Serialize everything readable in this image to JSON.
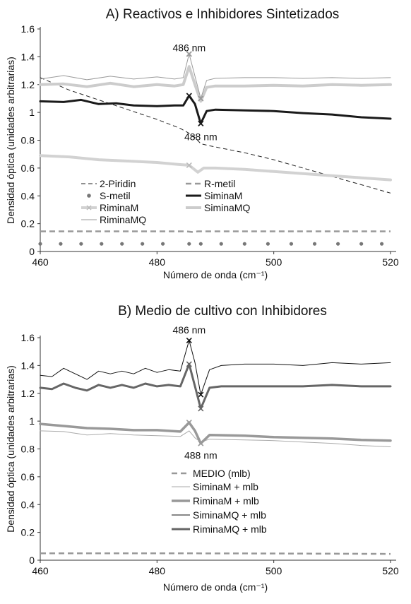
{
  "chart_data": [
    {
      "type": "line",
      "title": "A) Reactivos e Inhibidores Sintetizados",
      "xlabel": "Número de onda (cm⁻¹)",
      "ylabel": "Densidad óptica  (unidades arbitrarias)",
      "xlim": [
        460,
        520
      ],
      "ylim": [
        0,
        1.6
      ],
      "xticks": [
        460,
        480,
        500,
        520
      ],
      "yticks": [
        0,
        0.2,
        0.4,
        0.6,
        0.8,
        1,
        1.2,
        1.4,
        1.6
      ],
      "ytick_labels": [
        "0",
        "0.2",
        "0.4",
        "0.6",
        "0.8",
        "1",
        "1.2",
        "1.4",
        "1.6"
      ],
      "grid": false,
      "legend_position": "center",
      "annotations": [
        {
          "text": "486 nm",
          "x": 485.5,
          "y": 1.44
        },
        {
          "text": "488 nm",
          "x": 487.5,
          "y": 0.85
        }
      ],
      "series": [
        {
          "name": "2-Piridin",
          "color": "#222222",
          "style": "dashed",
          "width": 1,
          "x": [
            460,
            465,
            470,
            475,
            480,
            484,
            485.5,
            486.5,
            487.5,
            489,
            495,
            500,
            505,
            510,
            515,
            520
          ],
          "y": [
            1.25,
            1.16,
            1.09,
            1.02,
            0.95,
            0.885,
            0.85,
            0.82,
            0.775,
            0.76,
            0.71,
            0.66,
            0.6,
            0.54,
            0.48,
            0.42
          ]
        },
        {
          "name": "R-metil",
          "color": "#999999",
          "style": "dashed",
          "width": 2.5,
          "x": [
            460,
            485,
            486,
            487,
            488,
            500,
            520
          ],
          "y": [
            0.145,
            0.145,
            0.14,
            0.145,
            0.145,
            0.145,
            0.145
          ]
        },
        {
          "name": "S-metil",
          "color": "#777777",
          "style": "dots",
          "width": 1,
          "x": [
            460,
            463.5,
            467,
            470.5,
            474,
            477.5,
            481,
            485.5,
            487.5,
            491,
            495,
            499,
            503,
            507,
            511,
            515,
            518.5
          ],
          "y": [
            0.055,
            0.055,
            0.055,
            0.055,
            0.055,
            0.055,
            0.055,
            0.055,
            0.055,
            0.055,
            0.055,
            0.055,
            0.055,
            0.055,
            0.055,
            0.055,
            0.055
          ]
        },
        {
          "name": "SiminaM",
          "color": "#1a1a1a",
          "style": "solid",
          "width": 3,
          "x": [
            460,
            464,
            467,
            470,
            473,
            476,
            480,
            483,
            484.5,
            485.5,
            486.5,
            487.5,
            488.5,
            490,
            495,
            500,
            505,
            510,
            515,
            520
          ],
          "y": [
            1.08,
            1.075,
            1.09,
            1.06,
            1.065,
            1.05,
            1.045,
            1.05,
            1.05,
            1.12,
            1.06,
            0.92,
            1.01,
            1.02,
            1.015,
            1.01,
            0.995,
            0.985,
            0.965,
            0.955
          ]
        },
        {
          "name": "RiminaM",
          "color": "#d2d2d2",
          "style": "solid",
          "width": 4,
          "marker": "x",
          "x": [
            460,
            465,
            470,
            475,
            480,
            484,
            485.5,
            487,
            488,
            490,
            495,
            500,
            505,
            510,
            515,
            520
          ],
          "y": [
            0.69,
            0.68,
            0.66,
            0.65,
            0.64,
            0.625,
            0.62,
            0.57,
            0.6,
            0.6,
            0.59,
            0.575,
            0.56,
            0.545,
            0.53,
            0.515
          ]
        },
        {
          "name": "SiminaMQ",
          "color": "#cccccc",
          "style": "solid",
          "width": 4,
          "x": [
            460,
            464,
            468,
            472,
            476,
            480,
            483,
            484.5,
            485.5,
            486.5,
            487.5,
            488.5,
            490,
            495,
            500,
            505,
            510,
            515,
            520
          ],
          "y": [
            1.2,
            1.205,
            1.185,
            1.21,
            1.185,
            1.2,
            1.19,
            1.2,
            1.33,
            1.2,
            1.08,
            1.18,
            1.19,
            1.19,
            1.195,
            1.19,
            1.2,
            1.195,
            1.2
          ]
        },
        {
          "name": "RiminaMQ",
          "color": "#9a9a9a",
          "style": "solid",
          "width": 1,
          "x": [
            460,
            464,
            468,
            472,
            476,
            480,
            483,
            484.5,
            485.5,
            486.5,
            487.5,
            488.5,
            490,
            495,
            500,
            505,
            510,
            515,
            520
          ],
          "y": [
            1.24,
            1.265,
            1.235,
            1.26,
            1.24,
            1.255,
            1.24,
            1.25,
            1.42,
            1.26,
            1.1,
            1.23,
            1.245,
            1.25,
            1.25,
            1.245,
            1.25,
            1.245,
            1.25
          ]
        }
      ]
    },
    {
      "type": "line",
      "title": "B) Medio de cultivo con Inhibidores",
      "xlabel": "Número de onda (cm⁻¹)",
      "ylabel": "Densidad óptica (unidades arbitrarias)",
      "xlim": [
        460,
        520
      ],
      "ylim": [
        0,
        1.6
      ],
      "xticks": [
        460,
        480,
        500,
        520
      ],
      "yticks": [
        0,
        0.2,
        0.4,
        0.6,
        0.8,
        1,
        1.2,
        1.4,
        1.6
      ],
      "ytick_labels": [
        "0",
        "0.2",
        "0.4",
        "0.6",
        "0.8",
        "1",
        "1.2",
        "1.4",
        "1.6"
      ],
      "grid": false,
      "legend_position": "center-right",
      "annotations": [
        {
          "text": "486 nm",
          "x": 485.5,
          "y": 1.63
        },
        {
          "text": "488 nm",
          "x": 487.5,
          "y": 0.78
        }
      ],
      "series": [
        {
          "name": "MEDIO (mlb)",
          "color": "#999999",
          "style": "dashed",
          "width": 2.5,
          "x": [
            460,
            480,
            500,
            520
          ],
          "y": [
            0.05,
            0.05,
            0.048,
            0.045
          ]
        },
        {
          "name": "SiminaM + mlb",
          "color": "#aaaaaa",
          "style": "solid",
          "width": 1,
          "x": [
            460,
            464,
            468,
            472,
            476,
            480,
            484,
            485.5,
            486.5,
            487.5,
            489,
            495,
            500,
            505,
            510,
            515,
            520
          ],
          "y": [
            0.93,
            0.925,
            0.9,
            0.91,
            0.9,
            0.895,
            0.89,
            0.93,
            0.88,
            0.85,
            0.87,
            0.865,
            0.86,
            0.85,
            0.84,
            0.825,
            0.815
          ]
        },
        {
          "name": "RiminaM + mlb",
          "color": "#999999",
          "style": "solid",
          "width": 3.5,
          "marker": "x",
          "x": [
            460,
            464,
            468,
            472,
            476,
            480,
            484,
            485.5,
            486.5,
            487.5,
            489,
            495,
            500,
            505,
            510,
            515,
            520
          ],
          "y": [
            0.98,
            0.965,
            0.95,
            0.945,
            0.935,
            0.935,
            0.925,
            0.99,
            0.93,
            0.84,
            0.9,
            0.895,
            0.885,
            0.88,
            0.875,
            0.865,
            0.86
          ]
        },
        {
          "name": "SiminaMQ + mlb",
          "color": "#111111",
          "style": "solid",
          "width": 1,
          "marker": "x",
          "x": [
            460,
            462,
            464,
            466,
            468,
            470,
            472,
            474,
            476,
            478,
            480,
            482,
            484,
            485.5,
            486.5,
            487.5,
            489,
            491,
            495,
            500,
            505,
            510,
            515,
            520
          ],
          "y": [
            1.33,
            1.32,
            1.38,
            1.34,
            1.3,
            1.36,
            1.34,
            1.36,
            1.34,
            1.38,
            1.35,
            1.37,
            1.36,
            1.58,
            1.42,
            1.19,
            1.37,
            1.4,
            1.41,
            1.41,
            1.4,
            1.42,
            1.41,
            1.42
          ]
        },
        {
          "name": "RiminaMQ + mlb",
          "color": "#666666",
          "style": "solid",
          "width": 3,
          "marker": "x",
          "x": [
            460,
            462,
            464,
            466,
            468,
            470,
            472,
            474,
            476,
            478,
            480,
            482,
            484,
            485.5,
            486.5,
            487.5,
            489,
            491,
            495,
            500,
            505,
            510,
            515,
            520
          ],
          "y": [
            1.24,
            1.23,
            1.27,
            1.24,
            1.22,
            1.26,
            1.24,
            1.26,
            1.24,
            1.27,
            1.25,
            1.26,
            1.25,
            1.41,
            1.25,
            1.09,
            1.24,
            1.25,
            1.25,
            1.25,
            1.25,
            1.26,
            1.25,
            1.25
          ]
        }
      ]
    }
  ]
}
